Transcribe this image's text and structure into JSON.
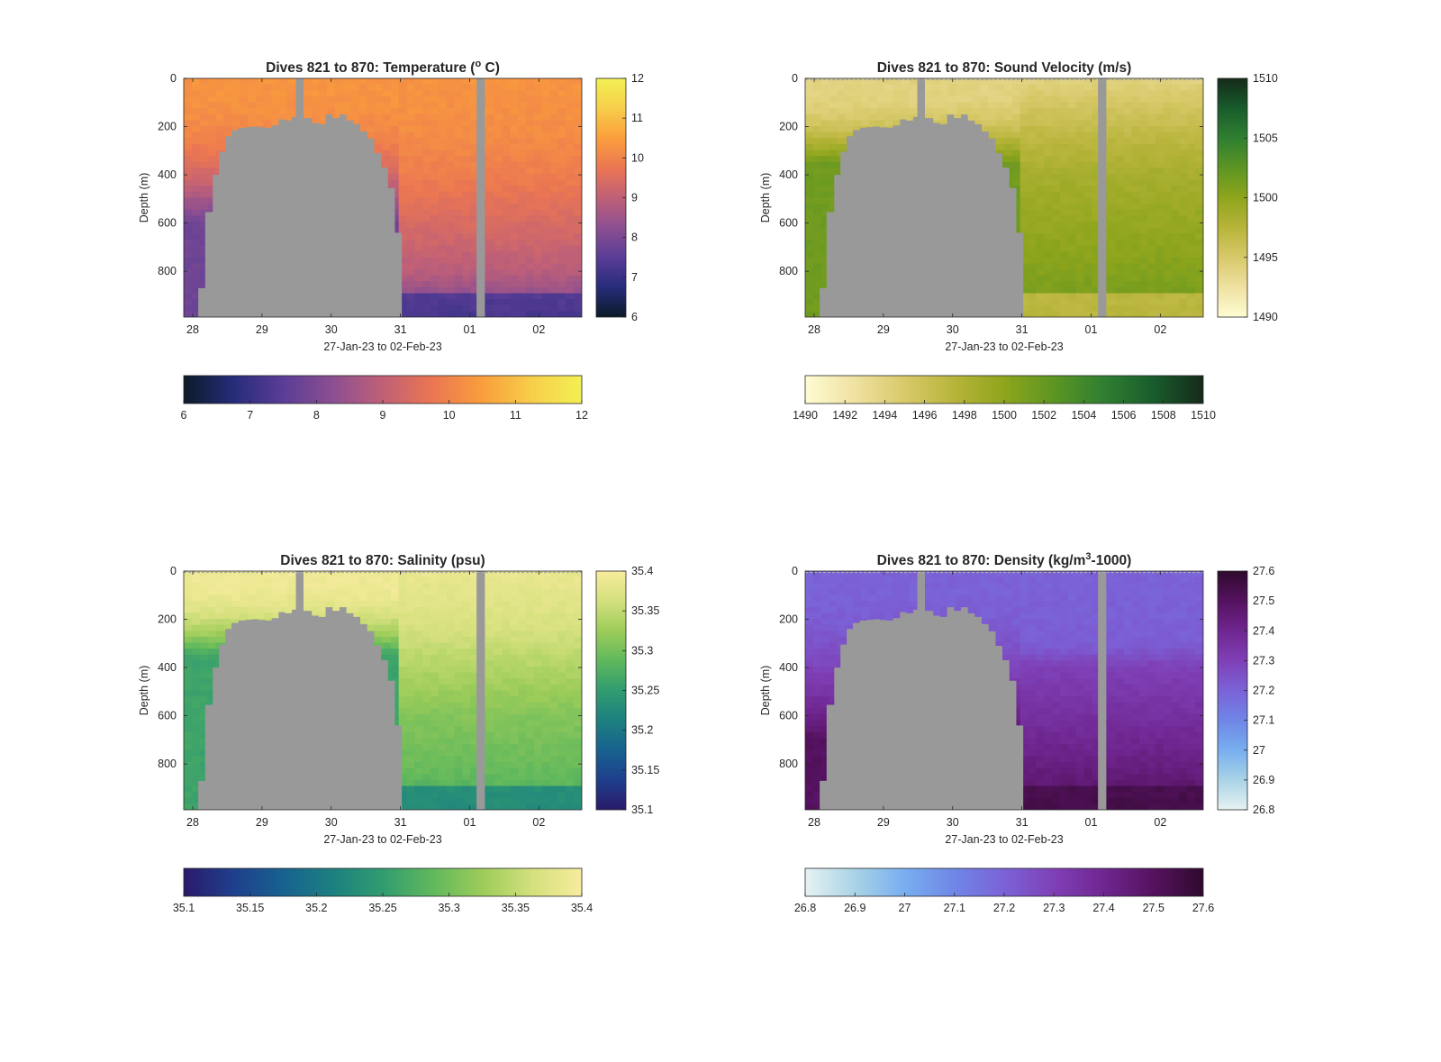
{
  "figure": {
    "background": "#ffffff",
    "no_data_color": "#999999"
  },
  "chart_data": [
    {
      "type": "heatmap",
      "title_prefix": "Dives 821 to 870: Temperature (",
      "title_super": "o",
      "title_suffix": " C)",
      "xlabel": "27-Jan-23 to 02-Feb-23",
      "ylabel": "Depth (m)",
      "x_tick_labels": [
        "28",
        "29",
        "30",
        "31",
        "01",
        "02"
      ],
      "y_tick_labels": [
        "0",
        "200",
        "400",
        "600",
        "800"
      ],
      "y_reversed": true,
      "ylim": [
        0,
        990
      ],
      "colormap": [
        "#0c1a28",
        "#272c7a",
        "#5a3d96",
        "#8c4f91",
        "#c06077",
        "#eb7652",
        "#fa9e3c",
        "#f7ce4a",
        "#f2f054"
      ],
      "clim": [
        6,
        12
      ],
      "right_colorbar_ticks": [
        "12",
        "11",
        "10",
        "9",
        "8",
        "7",
        "6"
      ],
      "bottom_colorbar_ticks": [
        "6",
        "7",
        "8",
        "9",
        "10",
        "11",
        "12"
      ],
      "field": {
        "surface_value": 10.3,
        "west_deep_value": 7.8,
        "west_rise_depth": 550,
        "east_gradient": [
          [
            0,
            10.3
          ],
          [
            200,
            10.2
          ],
          [
            400,
            9.9
          ],
          [
            600,
            9.4
          ],
          [
            800,
            8.9
          ],
          [
            990,
            7.8
          ]
        ],
        "east_bottom_value": 7.0
      }
    },
    {
      "type": "heatmap",
      "title_prefix": "Dives 821 to 870: Sound Velocity (m/s)",
      "title_super": "",
      "title_suffix": "",
      "xlabel": "27-Jan-23 to 02-Feb-23",
      "ylabel": "Depth (m)",
      "x_tick_labels": [
        "28",
        "29",
        "30",
        "31",
        "01",
        "02"
      ],
      "y_tick_labels": [
        "0",
        "200",
        "400",
        "600",
        "800"
      ],
      "y_reversed": true,
      "ylim": [
        0,
        990
      ],
      "colormap": [
        "#fefcd3",
        "#efe1a1",
        "#d8c96a",
        "#b7b43a",
        "#8ea51c",
        "#5c9523",
        "#2f7f31",
        "#195c2c",
        "#152a19"
      ],
      "clim": [
        1490,
        1510
      ],
      "right_colorbar_ticks": [
        "1510",
        "1505",
        "1500",
        "1495",
        "1490"
      ],
      "bottom_colorbar_ticks": [
        "1490",
        "1492",
        "1494",
        "1496",
        "1498",
        "1500",
        "1502",
        "1504",
        "1506",
        "1508",
        "1510"
      ],
      "field": {
        "surface_value": 1494,
        "west_deep_value": 1501.5,
        "west_rise_depth": 300,
        "east_gradient": [
          [
            0,
            1494.0
          ],
          [
            200,
            1496.5
          ],
          [
            400,
            1498.5
          ],
          [
            600,
            1499.5
          ],
          [
            800,
            1500.5
          ],
          [
            990,
            1501.5
          ]
        ],
        "east_bottom_value": 1495.5
      }
    },
    {
      "type": "heatmap",
      "title_prefix": "Dives 821 to 870: Salinity (psu)",
      "title_super": "",
      "title_suffix": "",
      "xlabel": "27-Jan-23 to 02-Feb-23",
      "ylabel": "Depth (m)",
      "x_tick_labels": [
        "28",
        "29",
        "30",
        "31",
        "01",
        "02"
      ],
      "y_tick_labels": [
        "0",
        "200",
        "400",
        "600",
        "800"
      ],
      "y_reversed": true,
      "ylim": [
        0,
        990
      ],
      "colormap": [
        "#2a1a6b",
        "#1f3f8c",
        "#17628f",
        "#1d8080",
        "#319c6f",
        "#60b85c",
        "#9ccc5a",
        "#d4e07c",
        "#f8ec9e"
      ],
      "clim": [
        35.1,
        35.4
      ],
      "right_colorbar_ticks": [
        "35.4",
        "35.35",
        "35.3",
        "35.25",
        "35.2",
        "35.15",
        "35.1"
      ],
      "bottom_colorbar_ticks": [
        "35.1",
        "35.15",
        "35.2",
        "35.25",
        "35.3",
        "35.35",
        "35.4"
      ],
      "field": {
        "surface_value": 35.39,
        "west_deep_value": 35.26,
        "west_rise_depth": 300,
        "east_gradient": [
          [
            0,
            35.385
          ],
          [
            200,
            35.37
          ],
          [
            400,
            35.34
          ],
          [
            600,
            35.31
          ],
          [
            800,
            35.295
          ],
          [
            990,
            35.27
          ]
        ],
        "east_bottom_value": 35.21
      }
    },
    {
      "type": "heatmap",
      "title_prefix": "Dives 821 to 870: Density (kg/m",
      "title_super": "3",
      "title_suffix": "-1000)",
      "xlabel": "27-Jan-23 to 02-Feb-23",
      "ylabel": "Depth (m)",
      "x_tick_labels": [
        "28",
        "29",
        "30",
        "31",
        "01",
        "02"
      ],
      "y_tick_labels": [
        "0",
        "200",
        "400",
        "600",
        "800"
      ],
      "y_reversed": true,
      "ylim": [
        0,
        990
      ],
      "colormap": [
        "#e6f2f2",
        "#a9d3e6",
        "#78aef0",
        "#6f86e6",
        "#7b62d7",
        "#7f40b6",
        "#6f2690",
        "#55125f",
        "#2f0a2d"
      ],
      "clim": [
        26.8,
        27.6
      ],
      "right_colorbar_ticks": [
        "27.6",
        "27.5",
        "27.4",
        "27.3",
        "27.2",
        "27.1",
        "27",
        "26.9",
        "26.8"
      ],
      "bottom_colorbar_ticks": [
        "26.8",
        "26.9",
        "27",
        "27.1",
        "27.2",
        "27.3",
        "27.4",
        "27.5",
        "27.6"
      ],
      "field": {
        "surface_value": 27.2,
        "west_deep_value": 27.5,
        "west_rise_depth": 650,
        "east_gradient": [
          [
            0,
            27.2
          ],
          [
            300,
            27.21
          ],
          [
            400,
            27.3
          ],
          [
            600,
            27.36
          ],
          [
            800,
            27.43
          ],
          [
            990,
            27.5
          ]
        ],
        "east_bottom_value": 27.56
      }
    }
  ],
  "section_shape": {
    "x_ticks": [
      28,
      29,
      30,
      31,
      32,
      33
    ],
    "x_range": [
      27.87,
      33.62
    ],
    "profiles": 50,
    "gaps": [
      {
        "from": 29.49,
        "to": 29.6
      },
      {
        "from": 32.1,
        "to": 32.22
      }
    ],
    "seafloor_depth": [
      [
        27.87,
        990
      ],
      [
        27.98,
        990
      ],
      [
        28.08,
        870
      ],
      [
        28.18,
        555
      ],
      [
        28.29,
        400
      ],
      [
        28.38,
        305
      ],
      [
        28.47,
        240
      ],
      [
        28.56,
        215
      ],
      [
        28.66,
        205
      ],
      [
        28.76,
        202
      ],
      [
        28.85,
        200
      ],
      [
        28.95,
        203
      ],
      [
        29.05,
        205
      ],
      [
        29.14,
        195
      ],
      [
        29.24,
        170
      ],
      [
        29.33,
        175
      ],
      [
        29.43,
        160
      ],
      [
        29.6,
        165
      ],
      [
        29.72,
        185
      ],
      [
        29.82,
        190
      ],
      [
        29.92,
        150
      ],
      [
        30.02,
        165
      ],
      [
        30.12,
        150
      ],
      [
        30.22,
        175
      ],
      [
        30.32,
        190
      ],
      [
        30.42,
        220
      ],
      [
        30.52,
        250
      ],
      [
        30.62,
        310
      ],
      [
        30.72,
        370
      ],
      [
        30.82,
        455
      ],
      [
        30.92,
        640
      ],
      [
        31.02,
        990
      ],
      [
        33.62,
        990
      ]
    ]
  }
}
